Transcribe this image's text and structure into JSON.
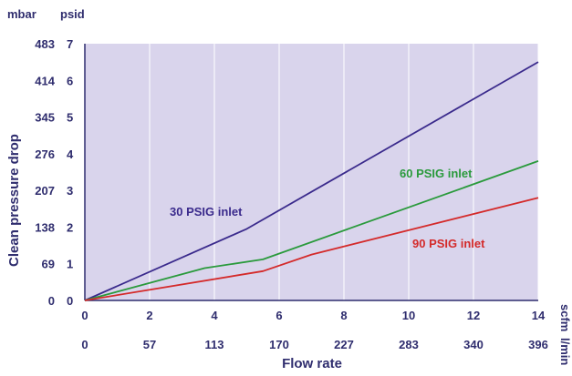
{
  "chart_data": {
    "type": "line",
    "ylabel": "Clean pressure drop",
    "xlabel": "Flow rate",
    "y_units": [
      "mbar",
      "psid"
    ],
    "x_units": [
      "scfm",
      "l/min"
    ],
    "ylim": [
      0,
      7
    ],
    "xlim": [
      0,
      14
    ],
    "y_ticks_psid": [
      "0",
      "1",
      "2",
      "3",
      "4",
      "5",
      "6",
      "7"
    ],
    "y_ticks_mbar": [
      "0",
      "69",
      "138",
      "207",
      "276",
      "345",
      "414",
      "483"
    ],
    "x_ticks_scfm": [
      "0",
      "2",
      "4",
      "6",
      "8",
      "10",
      "12",
      "14"
    ],
    "x_ticks_lmin": [
      "0",
      "57",
      "113",
      "170",
      "227",
      "283",
      "340",
      "396"
    ],
    "grid": "vertical",
    "background": "#d9d4ec",
    "series": [
      {
        "name": "30 PSIG inlet",
        "color": "#3a2a8c",
        "points": [
          [
            0,
            0
          ],
          [
            5,
            1.95
          ],
          [
            14,
            6.5
          ]
        ]
      },
      {
        "name": "60 PSIG inlet",
        "color": "#2a9a3c",
        "points": [
          [
            0,
            0
          ],
          [
            3.7,
            0.88
          ],
          [
            5.5,
            1.12
          ],
          [
            14,
            3.8
          ]
        ]
      },
      {
        "name": "90 PSIG inlet",
        "color": "#d42a2a",
        "points": [
          [
            0,
            0
          ],
          [
            5.5,
            0.8
          ],
          [
            7,
            1.25
          ],
          [
            14,
            2.8
          ]
        ]
      }
    ]
  }
}
